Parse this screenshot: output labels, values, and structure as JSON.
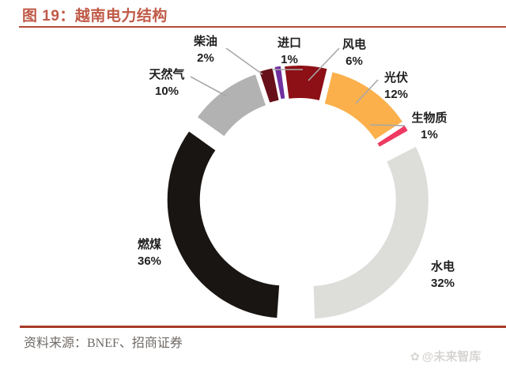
{
  "header": {
    "title": "图 19：越南电力结构"
  },
  "chart_data": {
    "type": "pie",
    "subtype": "doughnut_exploded",
    "title": "越南电力结构",
    "unit": "%",
    "order": "clockwise_from_top",
    "legend_position": "none",
    "data_labels": "outside_with_leader_lines",
    "segments": [
      {
        "label": "风电",
        "value": 6,
        "color": "#8C1016"
      },
      {
        "label": "光伏",
        "value": 12,
        "color": "#FBB04C"
      },
      {
        "label": "生物质",
        "value": 1,
        "color": "#EE3A62"
      },
      {
        "label": "水电",
        "value": 32,
        "color": "#DDDDDA"
      },
      {
        "label": "燃煤",
        "value": 36,
        "color": "#191512"
      },
      {
        "label": "天然气",
        "value": 10,
        "color": "#B2B2B2"
      },
      {
        "label": "柴油",
        "value": 2,
        "color": "#681019"
      },
      {
        "label": "进口",
        "value": 1,
        "color": "#7030A0"
      }
    ]
  },
  "footer": {
    "source": "资料来源：BNEF、招商证券",
    "watermark": "@未来智库",
    "watermark_icon": "wisdom-vault-logo"
  },
  "colors": {
    "title_text": "#C05A47",
    "title_rule": "#B24C38",
    "bottom_rule": "#A73C28",
    "leader_line": "#A8A8A8",
    "label_text": "#1F1F1F",
    "source_text": "#6F6A66",
    "watermark_text": "#D7D5D3",
    "slice_border": "#FFFFFF"
  }
}
